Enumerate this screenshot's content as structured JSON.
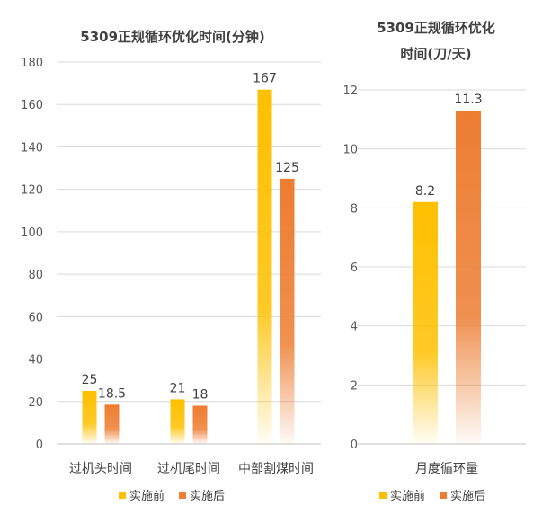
{
  "chart_data": [
    {
      "type": "bar",
      "title": "5309正规循环优化时间(分钟)",
      "categories": [
        "过机头时间",
        "过机尾时间",
        "中部割煤时间"
      ],
      "series": [
        {
          "name": "实施前",
          "values": [
            25,
            21,
            167
          ],
          "color": "#FFC000"
        },
        {
          "name": "实施后",
          "values": [
            18.5,
            18,
            125
          ],
          "color": "#ED7D31"
        }
      ],
      "ylim": [
        0,
        180
      ],
      "yticks": [
        0,
        20,
        40,
        60,
        80,
        100,
        120,
        140,
        160,
        180
      ],
      "grid": true,
      "legend": "bottom"
    },
    {
      "type": "bar",
      "title_lines": [
        "5309正规循环优化",
        "时间(刀/天)"
      ],
      "categories": [
        "月度循环量"
      ],
      "series": [
        {
          "name": "实施前",
          "values": [
            8.2
          ],
          "color": "#FFC000"
        },
        {
          "name": "实施后",
          "values": [
            11.3
          ],
          "color": "#ED7D31"
        }
      ],
      "ylim": [
        0,
        12
      ],
      "yticks": [
        0,
        2,
        4,
        6,
        8,
        10,
        12
      ],
      "grid": true,
      "legend": "bottom"
    }
  ]
}
